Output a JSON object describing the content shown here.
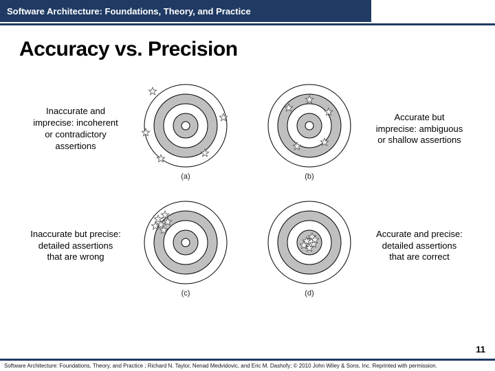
{
  "header": {
    "title": "Software Architecture: Foundations, Theory, and Practice"
  },
  "slide": {
    "title": "Accuracy vs. Precision",
    "page_number": "11"
  },
  "diagram": {
    "target": {
      "rings": [
        60,
        46,
        32,
        18,
        6
      ],
      "ring_fill": "#ffffff",
      "ring_alt_fill": "#bfbfbf",
      "stroke": "#000000",
      "stroke_width": 1
    },
    "star": {
      "outer": 6,
      "inner": 2.6,
      "fill": "#f2f2f2",
      "stroke": "#444444",
      "stroke_width": 0.7
    },
    "panels": [
      {
        "id": "a",
        "sub": "(a)",
        "caption_left": "Inaccurate and imprecise: incoherent or contradictory assertions",
        "caption_right": null,
        "points": [
          [
            -48,
            -50
          ],
          [
            -58,
            10
          ],
          [
            -36,
            48
          ],
          [
            55,
            -12
          ],
          [
            28,
            40
          ]
        ]
      },
      {
        "id": "b",
        "sub": "(b)",
        "caption_left": null,
        "caption_right": "Accurate but imprecise: ambiguous or shallow assertions",
        "points": [
          [
            -30,
            -26
          ],
          [
            28,
            -20
          ],
          [
            -18,
            30
          ],
          [
            22,
            24
          ],
          [
            0,
            -38
          ]
        ]
      },
      {
        "id": "c",
        "sub": "(c)",
        "caption_left": "Inaccurate but precise: detailed assertions that are wrong",
        "caption_right": null,
        "points": [
          [
            -40,
            -34
          ],
          [
            -30,
            -40
          ],
          [
            -36,
            -26
          ],
          [
            -26,
            -30
          ],
          [
            -44,
            -24
          ],
          [
            -32,
            -18
          ]
        ]
      },
      {
        "id": "d",
        "sub": "(d)",
        "caption_left": null,
        "caption_right": "Accurate and precise: detailed assertions that are correct",
        "points": [
          [
            -4,
            -2
          ],
          [
            6,
            2
          ],
          [
            0,
            8
          ],
          [
            -8,
            4
          ],
          [
            4,
            -8
          ],
          [
            8,
            -4
          ]
        ]
      }
    ]
  },
  "footer": {
    "text": "Software Architecture: Foundations, Theory, and Practice ; Richard N. Taylor, Nenad Medvidovic, and Eric M. Dashofy; © 2010 John Wiley & Sons, Inc. Reprinted with permission."
  }
}
